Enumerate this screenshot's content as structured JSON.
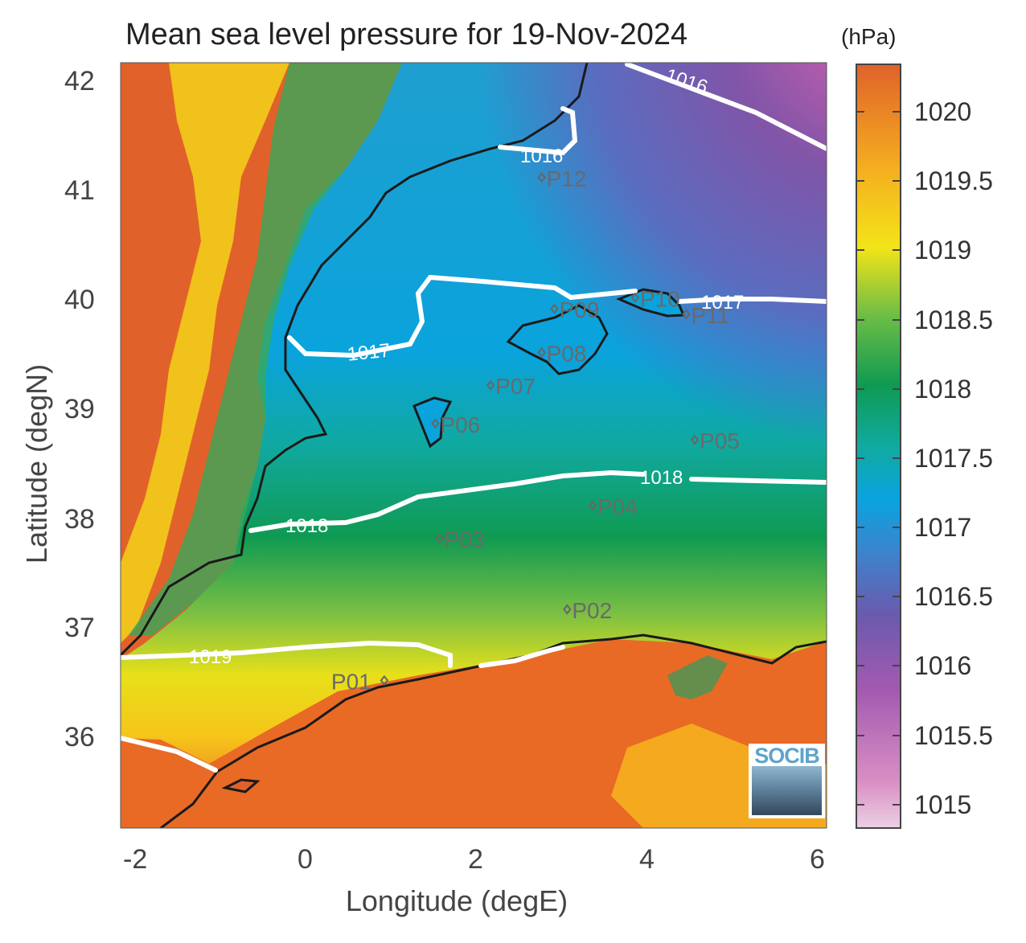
{
  "title": "Mean sea level pressure for 19-Nov-2024",
  "unit": "(hPa)",
  "xlabel": "Longitude (degE)",
  "ylabel": "Latitude (degN)",
  "logo_text": "SOCIB",
  "chart_data": {
    "type": "heatmap",
    "title": "Mean sea level pressure for 19-Nov-2024",
    "xlabel": "Longitude (degE)",
    "ylabel": "Latitude (degN)",
    "xlim": [
      -2.25,
      6.05
    ],
    "ylim": [
      35.15,
      42.15
    ],
    "x_ticks": [
      "-2",
      "0",
      "2",
      "4",
      "6"
    ],
    "y_ticks": [
      "36",
      "37",
      "38",
      "39",
      "40",
      "41",
      "42"
    ],
    "colorbar": {
      "label": "(hPa)",
      "range": [
        1014.85,
        1020.4
      ],
      "ticks": [
        "1015",
        "1015.5",
        "1016",
        "1016.5",
        "1017",
        "1017.5",
        "1018",
        "1018.5",
        "1019",
        "1019.5",
        "1020"
      ],
      "colormap": [
        "#e9c3dc",
        "#cf5fae",
        "#8055a8",
        "#5a6dc0",
        "#0a9fe0",
        "#10a9a0",
        "#0f9a52",
        "#8cc63f",
        "#f6e51a",
        "#f5a623",
        "#e0622a"
      ]
    },
    "contours": [
      {
        "label": "1016",
        "color": "#ffffff"
      },
      {
        "label": "1016",
        "color": "#ffffff"
      },
      {
        "label": "1017",
        "color": "#ffffff"
      },
      {
        "label": "1017",
        "color": "#ffffff"
      },
      {
        "label": "1018",
        "color": "#ffffff"
      },
      {
        "label": "1018",
        "color": "#ffffff"
      },
      {
        "label": "1019",
        "color": "#ffffff"
      }
    ],
    "points": [
      {
        "label": "P01",
        "lon": 0.85,
        "lat": 36.5
      },
      {
        "label": "P02",
        "lon": 3.0,
        "lat": 37.15
      },
      {
        "label": "P03",
        "lon": 1.5,
        "lat": 37.8
      },
      {
        "label": "P04",
        "lon": 3.3,
        "lat": 38.1
      },
      {
        "label": "P05",
        "lon": 4.5,
        "lat": 38.7
      },
      {
        "label": "P06",
        "lon": 1.45,
        "lat": 38.85
      },
      {
        "label": "P07",
        "lon": 2.1,
        "lat": 39.2
      },
      {
        "label": "P08",
        "lon": 2.7,
        "lat": 39.5
      },
      {
        "label": "P09",
        "lon": 2.85,
        "lat": 39.9
      },
      {
        "label": "P10",
        "lon": 3.8,
        "lat": 40.0
      },
      {
        "label": "P11",
        "lon": 4.4,
        "lat": 39.85
      },
      {
        "label": "P12",
        "lon": 2.7,
        "lat": 41.1
      }
    ]
  }
}
